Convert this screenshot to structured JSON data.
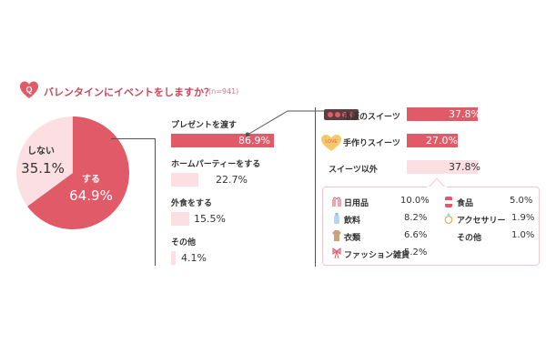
{
  "question": {
    "badge": "Q",
    "title": "バレンタインにイベントをしますか？",
    "n": "(n=941)"
  },
  "colors": {
    "accent": "#e15a68",
    "light": "#fcdfe2",
    "text": "#333333"
  },
  "chart_data": [
    {
      "type": "pie",
      "title": "",
      "slices": [
        {
          "label": "する",
          "value": 64.9,
          "display": "64.9%",
          "color": "#e15a68"
        },
        {
          "label": "しない",
          "value": 35.1,
          "display": "35.1%",
          "color": "#fcdfe2"
        }
      ]
    },
    {
      "type": "bar",
      "title": "",
      "categories": [
        "プレゼントを渡す",
        "ホームパーティーをする",
        "外食をする",
        "その他"
      ],
      "values": [
        86.9,
        22.7,
        15.5,
        4.1
      ],
      "display": [
        "86.9%",
        "22.7%",
        "15.5%",
        "4.1%"
      ]
    },
    {
      "type": "bar",
      "title": "",
      "categories": [
        "市販のスイーツ",
        "手作りスイーツ",
        "スイーツ以外"
      ],
      "values": [
        37.8,
        27.0,
        37.8
      ],
      "display": [
        "37.8%",
        "27.0%",
        "37.8%"
      ]
    },
    {
      "type": "table",
      "title": "",
      "items": [
        {
          "label": "日用品",
          "value": "10.0%",
          "icon": "gift-box-icon"
        },
        {
          "label": "飲料",
          "value": "8.2%",
          "icon": "bottle-icon"
        },
        {
          "label": "衣類",
          "value": "6.6%",
          "icon": "clothes-icon"
        },
        {
          "label": "ファッション雑貨",
          "value": "5.2%",
          "icon": "ribbon-icon"
        },
        {
          "label": "食品",
          "value": "5.0%",
          "icon": "can-icon"
        },
        {
          "label": "アクセサリー",
          "value": "1.9%",
          "icon": "ring-icon"
        },
        {
          "label": "その他",
          "value": "1.0%",
          "icon": ""
        }
      ]
    }
  ],
  "sweets_icons": {
    "store": "chocolate-box-icon",
    "homemade": "heart-cookie-icon",
    "homemade_text": "LOVE"
  }
}
